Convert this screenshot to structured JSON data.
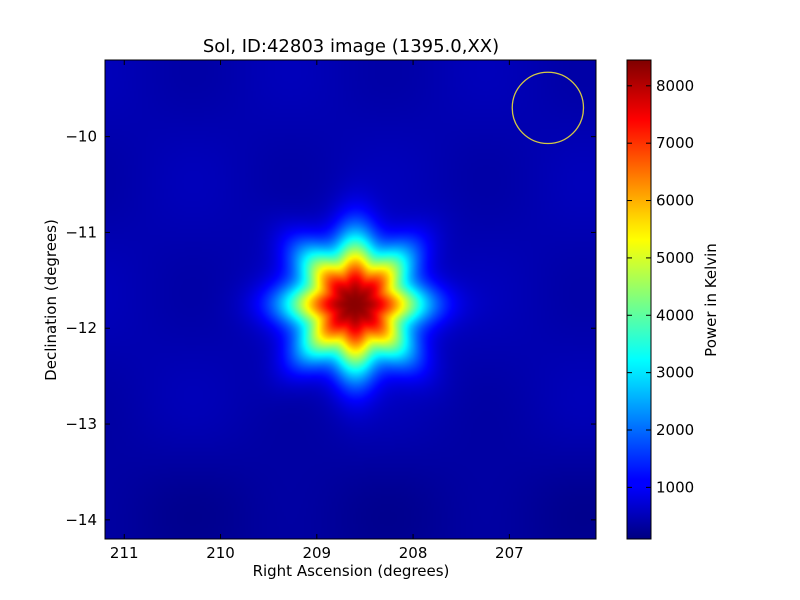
{
  "chart_data": {
    "type": "heatmap",
    "title": "Sol, ID:42803 image (1395.0,XX)",
    "xlabel": "Right Ascension (degrees)",
    "ylabel": "Declination (degrees)",
    "xlim": [
      211.2,
      206.1
    ],
    "ylim": [
      -14.2,
      -9.2
    ],
    "x_ticks": [
      211,
      210,
      209,
      208,
      207
    ],
    "y_ticks": [
      -10,
      -11,
      -12,
      -13,
      -14
    ],
    "x_tick_labels": [
      "211",
      "210",
      "209",
      "208",
      "207"
    ],
    "y_tick_labels": [
      "−10",
      "−11",
      "−12",
      "−13",
      "−14"
    ],
    "grid": false,
    "colormap": "jet",
    "colorbar": {
      "label": "Power in Kelvin",
      "range": [
        100,
        8450
      ],
      "ticks": [
        1000,
        2000,
        3000,
        4000,
        5000,
        6000,
        7000,
        8000
      ],
      "tick_labels": [
        "1000",
        "2000",
        "3000",
        "4000",
        "5000",
        "6000",
        "7000",
        "8000"
      ]
    },
    "source": {
      "center_ra": 208.6,
      "center_dec": -11.75,
      "peak_power": 8400,
      "background_power": 500,
      "lobes": 8
    },
    "annotations": [
      {
        "type": "circle",
        "center_ra": 206.6,
        "center_dec": -9.7,
        "radius_deg": 0.37,
        "color": "#d4c844"
      }
    ]
  }
}
